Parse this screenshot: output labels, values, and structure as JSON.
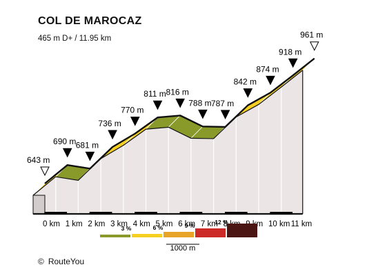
{
  "title": "COL DE MAROCAZ",
  "subtitle": "465 m D+ / 11.95 km",
  "credit": {
    "symbol": "©",
    "text": "RouteYou"
  },
  "chart_data": {
    "type": "area",
    "title": "COL DE MAROCAZ",
    "subtitle": "465 m D+ / 11.95 km",
    "x_unit": "km",
    "y_unit": "m",
    "x_ticks": [
      "0 km",
      "1 km",
      "2 km",
      "3 km",
      "4 km",
      "5 km",
      "6 km",
      "7 km",
      "8 km",
      "9 km",
      "10 km",
      "11 km"
    ],
    "profile": [
      {
        "km": 0,
        "elev": 643
      },
      {
        "km": 1,
        "elev": 690
      },
      {
        "km": 2,
        "elev": 681
      },
      {
        "km": 3,
        "elev": 736
      },
      {
        "km": 4,
        "elev": 770
      },
      {
        "km": 5,
        "elev": 811
      },
      {
        "km": 6,
        "elev": 816
      },
      {
        "km": 7,
        "elev": 788
      },
      {
        "km": 8,
        "elev": 787
      },
      {
        "km": 9,
        "elev": 842
      },
      {
        "km": 10,
        "elev": 874
      },
      {
        "km": 11,
        "elev": 918
      },
      {
        "km": 11.95,
        "elev": 961
      }
    ],
    "elevation_labels": [
      "643 m",
      "690 m",
      "681 m",
      "736 m",
      "770 m",
      "811 m",
      "816 m",
      "788 m",
      "787 m",
      "842 m",
      "874 m",
      "918 m",
      "961 m"
    ],
    "segment_classes": [
      "yellow",
      "green",
      "yellow",
      "yellow",
      "yellow",
      "green",
      "green",
      "green",
      "yellow",
      "yellow",
      "yellow",
      "yellow"
    ],
    "legend": {
      "items": [
        {
          "label": "3 %",
          "color": "#8a9a2a"
        },
        {
          "label": "6 %",
          "color": "#f5d020"
        },
        {
          "label": "9 %",
          "color": "#e8a428"
        },
        {
          "label": "12 %",
          "color": "#cc2a26"
        },
        {
          "label": "",
          "color": "#4a1512"
        }
      ],
      "scale_label": "1000 m"
    },
    "colors": {
      "green": "#8a9a2a",
      "yellow": "#f5d020",
      "side": "#ebe6e5",
      "base_side": "#d2cccc",
      "outline": "#111111"
    }
  }
}
